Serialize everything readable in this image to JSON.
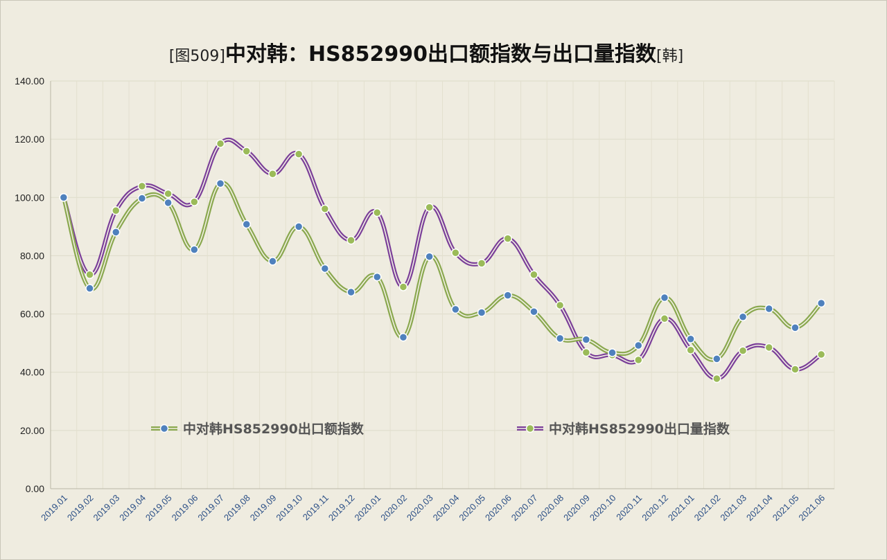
{
  "chart_data": {
    "type": "line",
    "title_prefix": "[图509]",
    "title": "中对韩：HS852990出口额指数与出口量指数",
    "title_suffix": "[韩]",
    "x": [
      "2019.01",
      "2019.02",
      "2019.03",
      "2019.04",
      "2019.05",
      "2019.06",
      "2019.07",
      "2019.08",
      "2019.09",
      "2019.10",
      "2019.11",
      "2019.12",
      "2020.01",
      "2020.02",
      "2020.03",
      "2020.04",
      "2020.05",
      "2020.06",
      "2020.07",
      "2020.08",
      "2020.09",
      "2020.10",
      "2020.11",
      "2020.12",
      "2021.01",
      "2021.02",
      "2021.03",
      "2021.04",
      "2021.05",
      "2021.06"
    ],
    "y_ticks": [
      "0.00",
      "20.00",
      "40.00",
      "60.00",
      "80.00",
      "100.00",
      "120.00",
      "140.00"
    ],
    "ylim": [
      0,
      140
    ],
    "grid": true,
    "legend_position": "inside-lower-middle",
    "series": [
      {
        "name": "中对韩HS852990出口额指数",
        "line_color": "#8aa84f",
        "marker_color": "#4f81bd",
        "values": [
          100.0,
          68.8,
          88.1,
          99.7,
          98.2,
          82.1,
          104.8,
          90.8,
          78.1,
          90.0,
          75.6,
          67.5,
          72.7,
          52.0,
          79.7,
          61.6,
          60.5,
          66.4,
          60.8,
          51.6,
          51.2,
          46.7,
          49.2,
          65.6,
          51.4,
          44.6,
          59.0,
          61.8,
          55.3,
          63.7
        ]
      },
      {
        "name": "中对韩HS852990出口量指数",
        "line_color": "#7b3f99",
        "marker_color": "#9bbb59",
        "values": [
          100.0,
          73.5,
          95.5,
          103.9,
          101.3,
          98.5,
          118.5,
          115.9,
          108.1,
          114.9,
          96.1,
          85.3,
          94.8,
          69.3,
          96.6,
          81.0,
          77.4,
          85.9,
          73.5,
          63.0,
          46.8,
          45.9,
          44.2,
          58.4,
          47.6,
          37.8,
          47.4,
          48.5,
          41.0,
          46.1
        ]
      }
    ]
  }
}
